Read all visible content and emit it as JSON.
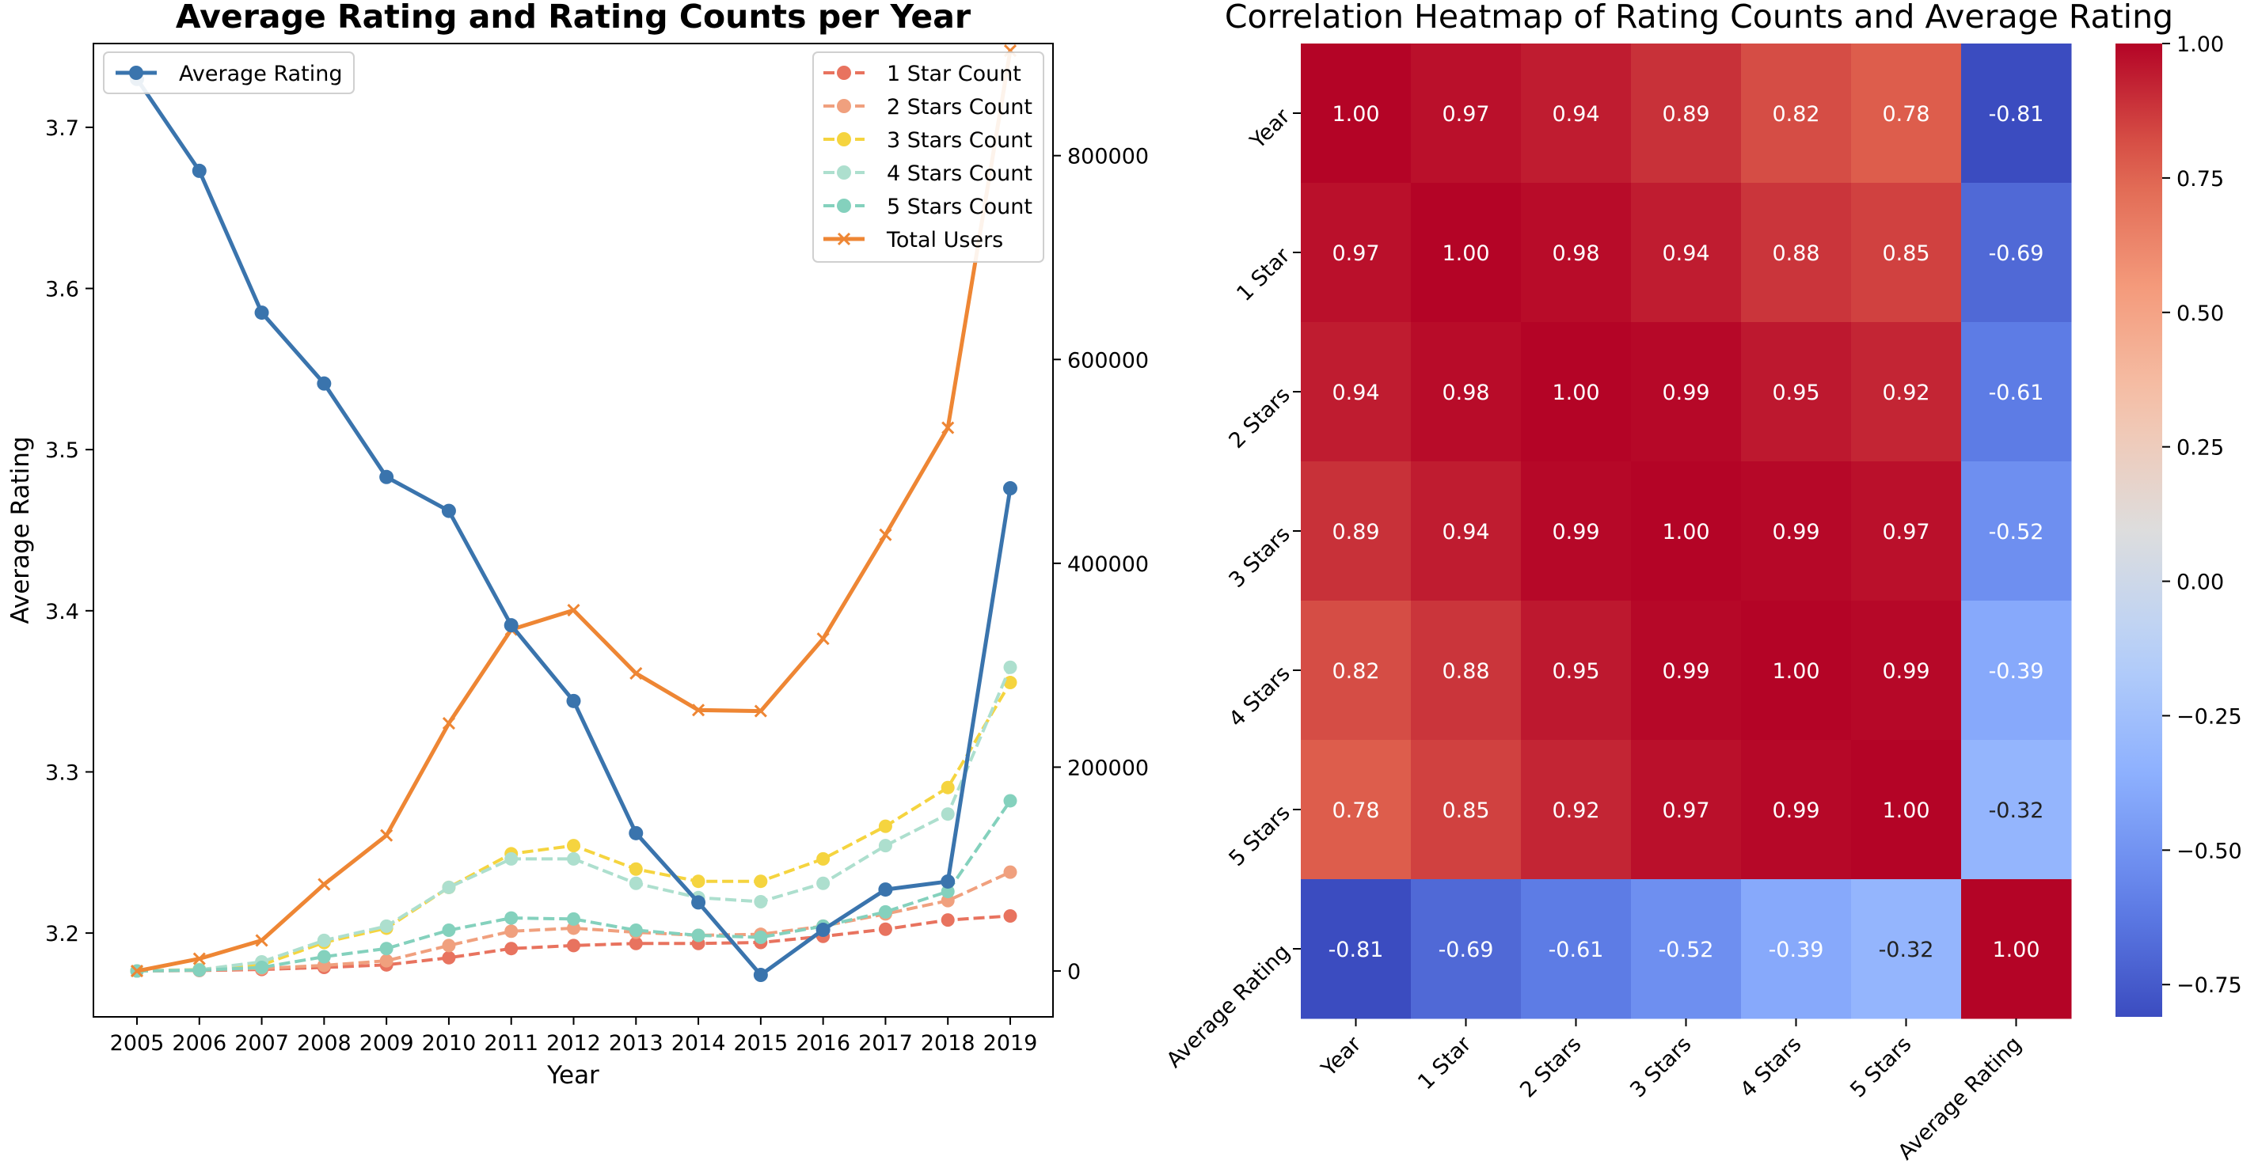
{
  "chart_data": [
    {
      "type": "line",
      "title": "Average Rating and Rating Counts per Year",
      "xlabel": "Year",
      "ylabel": "Average Rating",
      "x": [
        2005,
        2006,
        2007,
        2008,
        2009,
        2010,
        2011,
        2012,
        2013,
        2014,
        2015,
        2016,
        2017,
        2018,
        2019
      ],
      "y_ticks": [
        "3.2",
        "3.3",
        "3.4",
        "3.5",
        "3.6",
        "3.7"
      ],
      "y2_ticks": [
        "0",
        "200000",
        "400000",
        "600000",
        "800000"
      ],
      "ylim": [
        3.148,
        3.752
      ],
      "y2lim": [
        -45000,
        910000
      ],
      "grid": false,
      "legend_left_placement": "upper-left",
      "legend_right_placement": "upper-right",
      "series": [
        {
          "name": "Average Rating",
          "axis": "left",
          "style": "solid",
          "marker": "circle",
          "color": "#3a74ad",
          "values": [
            3.73,
            3.673,
            3.585,
            3.541,
            3.483,
            3.462,
            3.391,
            3.344,
            3.262,
            3.219,
            3.174,
            3.202,
            3.227,
            3.232,
            3.476
          ]
        },
        {
          "name": "1 Star Count",
          "axis": "right",
          "style": "dashed",
          "marker": "circle",
          "color": "#e8735f",
          "values": [
            0,
            500,
            1500,
            3500,
            6000,
            13000,
            22000,
            25000,
            27000,
            27000,
            28000,
            34000,
            41000,
            50000,
            54000
          ]
        },
        {
          "name": "2 Stars Count",
          "axis": "right",
          "style": "dashed",
          "marker": "circle",
          "color": "#f0a07e",
          "values": [
            0,
            800,
            2500,
            5500,
            10000,
            25000,
            39000,
            42000,
            38000,
            35000,
            36000,
            44000,
            56000,
            69000,
            97000
          ]
        },
        {
          "name": "3 Stars Count",
          "axis": "right",
          "style": "dashed",
          "marker": "circle",
          "color": "#f5d43f",
          "values": [
            0,
            1500,
            6000,
            28000,
            42000,
            82000,
            115000,
            123000,
            100000,
            88000,
            88000,
            110000,
            142000,
            180000,
            283000
          ]
        },
        {
          "name": "4 Stars Count",
          "axis": "right",
          "style": "dashed",
          "marker": "circle",
          "color": "#addfce",
          "values": [
            0,
            1200,
            9000,
            30000,
            44000,
            82000,
            110000,
            110000,
            86000,
            72000,
            68000,
            86000,
            123000,
            154000,
            298000
          ]
        },
        {
          "name": "5 Stars Count",
          "axis": "right",
          "style": "dashed",
          "marker": "circle",
          "color": "#84d1bd",
          "values": [
            0,
            800,
            3500,
            14000,
            22000,
            40000,
            52000,
            51000,
            40000,
            35000,
            33000,
            44000,
            58000,
            78000,
            167000
          ]
        },
        {
          "name": "Total Users",
          "axis": "right",
          "style": "solid",
          "marker": "x",
          "color": "#ee8634",
          "values": [
            0,
            12000,
            30000,
            85000,
            133000,
            243000,
            335000,
            354000,
            292000,
            256000,
            255000,
            326000,
            428000,
            533000,
            903000
          ]
        }
      ]
    },
    {
      "type": "heatmap",
      "title": "Correlation Heatmap of Rating Counts and Average Rating",
      "row_labels": [
        "Year",
        "1 Star",
        "2 Stars",
        "3 Stars",
        "4 Stars",
        "5 Stars",
        "Average Rating"
      ],
      "col_labels": [
        "Year",
        "1 Star",
        "2 Stars",
        "3 Stars",
        "4 Stars",
        "5 Stars",
        "Average Rating"
      ],
      "values": [
        [
          1.0,
          0.97,
          0.94,
          0.89,
          0.82,
          0.78,
          -0.81
        ],
        [
          0.97,
          1.0,
          0.98,
          0.94,
          0.88,
          0.85,
          -0.69
        ],
        [
          0.94,
          0.98,
          1.0,
          0.99,
          0.95,
          0.92,
          -0.61
        ],
        [
          0.89,
          0.94,
          0.99,
          1.0,
          0.99,
          0.97,
          -0.52
        ],
        [
          0.82,
          0.88,
          0.95,
          0.99,
          1.0,
          0.99,
          -0.39
        ],
        [
          0.78,
          0.85,
          0.92,
          0.97,
          0.99,
          1.0,
          -0.32
        ],
        [
          -0.81,
          -0.69,
          -0.61,
          -0.52,
          -0.39,
          -0.32,
          1.0
        ]
      ],
      "colormap": "coolwarm",
      "vmin": -0.81,
      "vmax": 1.0,
      "colorbar_ticks": [
        "1.00",
        "0.75",
        "0.50",
        "0.25",
        "0.00",
        "−0.25",
        "−0.50",
        "−0.75"
      ]
    }
  ]
}
